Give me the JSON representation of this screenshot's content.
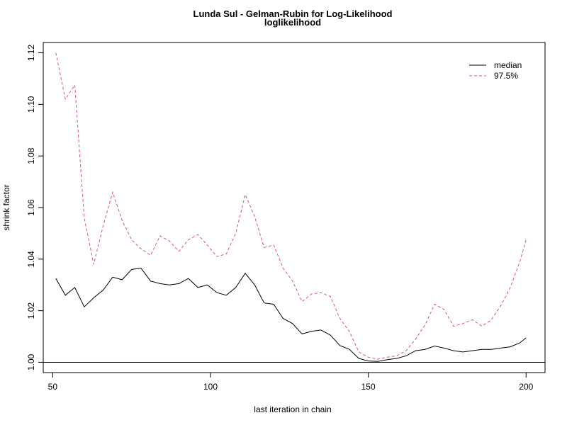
{
  "chart_data": {
    "type": "line",
    "title": "Lunda Sul - Gelman-Rubin for Log-Likelihood",
    "subtitle": "loglikelihood",
    "xlabel": "last iteration in chain",
    "ylabel": "shrink factor",
    "xlim": [
      47,
      206
    ],
    "ylim": [
      0.996,
      1.124
    ],
    "xticks": [
      50,
      100,
      150,
      200
    ],
    "yticks": [
      1.0,
      1.02,
      1.04,
      1.06,
      1.08,
      1.1,
      1.12
    ],
    "ytick_labels": [
      "1.00",
      "1.02",
      "1.04",
      "1.06",
      "1.08",
      "1.10",
      "1.12"
    ],
    "hline": 1.0,
    "legend_position": "top-right",
    "x": [
      51,
      54,
      57,
      60,
      63,
      66,
      69,
      72,
      75,
      78,
      81,
      84,
      87,
      90,
      93,
      96,
      99,
      102,
      105,
      108,
      111,
      114,
      117,
      120,
      123,
      126,
      129,
      132,
      135,
      138,
      141,
      144,
      147,
      150,
      153,
      156,
      159,
      162,
      165,
      168,
      171,
      174,
      177,
      180,
      183,
      186,
      189,
      192,
      195,
      198,
      200
    ],
    "series": [
      {
        "name": "median",
        "color": "#000000",
        "dash": "solid",
        "values": [
          1.0325,
          1.026,
          1.029,
          1.0215,
          1.025,
          1.028,
          1.033,
          1.032,
          1.036,
          1.0365,
          1.0315,
          1.0305,
          1.03,
          1.0305,
          1.0325,
          1.029,
          1.03,
          1.027,
          1.026,
          1.029,
          1.0345,
          1.03,
          1.023,
          1.0225,
          1.017,
          1.015,
          1.011,
          1.012,
          1.0125,
          1.0105,
          1.0065,
          1.005,
          1.0015,
          1.0005,
          1.0003,
          1.001,
          1.0015,
          1.0025,
          1.0045,
          1.005,
          1.0063,
          1.0055,
          1.0045,
          1.004,
          1.0045,
          1.005,
          1.005,
          1.0055,
          1.006,
          1.0075,
          1.0095
        ]
      },
      {
        "name": "97.5%",
        "color": "#DF536B",
        "dash": "dashed",
        "values": [
          1.12,
          1.102,
          1.1075,
          1.056,
          1.038,
          1.053,
          1.066,
          1.055,
          1.0475,
          1.044,
          1.0415,
          1.049,
          1.047,
          1.043,
          1.0475,
          1.0495,
          1.0455,
          1.041,
          1.042,
          1.05,
          1.065,
          1.0565,
          1.0445,
          1.0455,
          1.0365,
          1.0315,
          1.0235,
          1.0265,
          1.027,
          1.0255,
          1.017,
          1.012,
          1.004,
          1.002,
          1.0012,
          1.002,
          1.0025,
          1.0045,
          1.009,
          1.0145,
          1.0225,
          1.0205,
          1.014,
          1.015,
          1.0165,
          1.014,
          1.0165,
          1.022,
          1.029,
          1.039,
          1.0475
        ]
      }
    ]
  }
}
